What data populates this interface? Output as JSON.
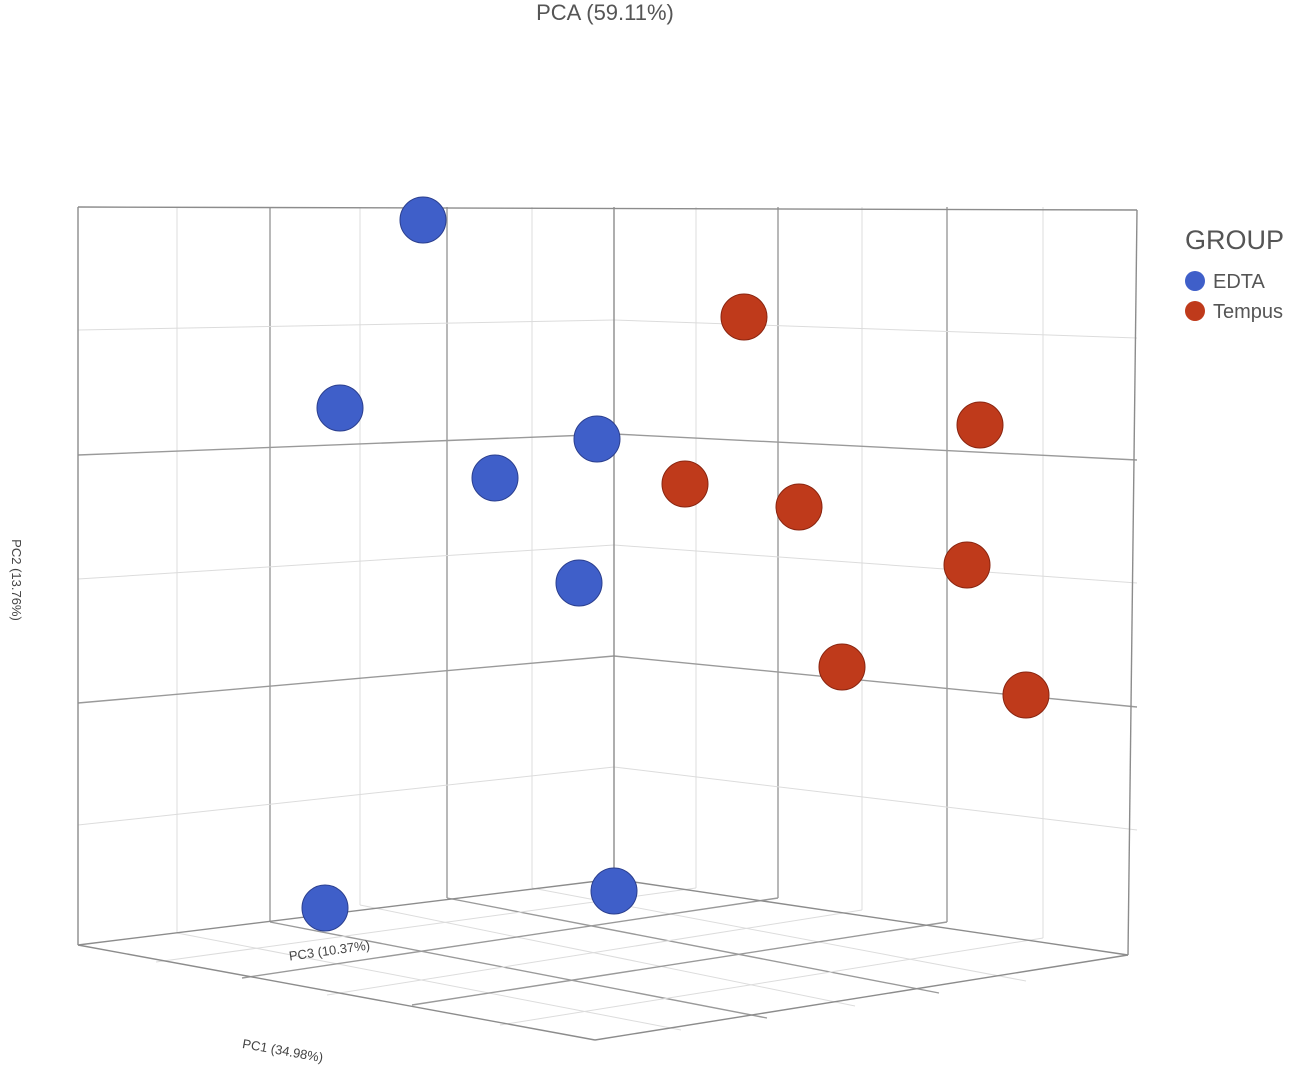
{
  "chart_data": {
    "type": "scatter",
    "title": "PCA (59.11%)",
    "axes": {
      "x_label": "PC1 (34.98%)",
      "y_label": "PC2 (13.76%)",
      "z_label": "PC3 (10.37%)"
    },
    "legend": {
      "title": "GROUP",
      "placement": "right"
    },
    "series": [
      {
        "name": "EDTA",
        "color": "#3f5fc9",
        "points": [
          {
            "screen_x": 423,
            "screen_y": 220
          },
          {
            "screen_x": 340,
            "screen_y": 408
          },
          {
            "screen_x": 597,
            "screen_y": 439
          },
          {
            "screen_x": 495,
            "screen_y": 478
          },
          {
            "screen_x": 579,
            "screen_y": 583
          },
          {
            "screen_x": 325,
            "screen_y": 908
          },
          {
            "screen_x": 614,
            "screen_y": 891
          }
        ]
      },
      {
        "name": "Tempus",
        "color": "#bf3a1b",
        "points": [
          {
            "screen_x": 744,
            "screen_y": 317
          },
          {
            "screen_x": 980,
            "screen_y": 425
          },
          {
            "screen_x": 685,
            "screen_y": 484
          },
          {
            "screen_x": 799,
            "screen_y": 507
          },
          {
            "screen_x": 967,
            "screen_y": 565
          },
          {
            "screen_x": 842,
            "screen_y": 667
          },
          {
            "screen_x": 1026,
            "screen_y": 695
          }
        ]
      }
    ]
  }
}
